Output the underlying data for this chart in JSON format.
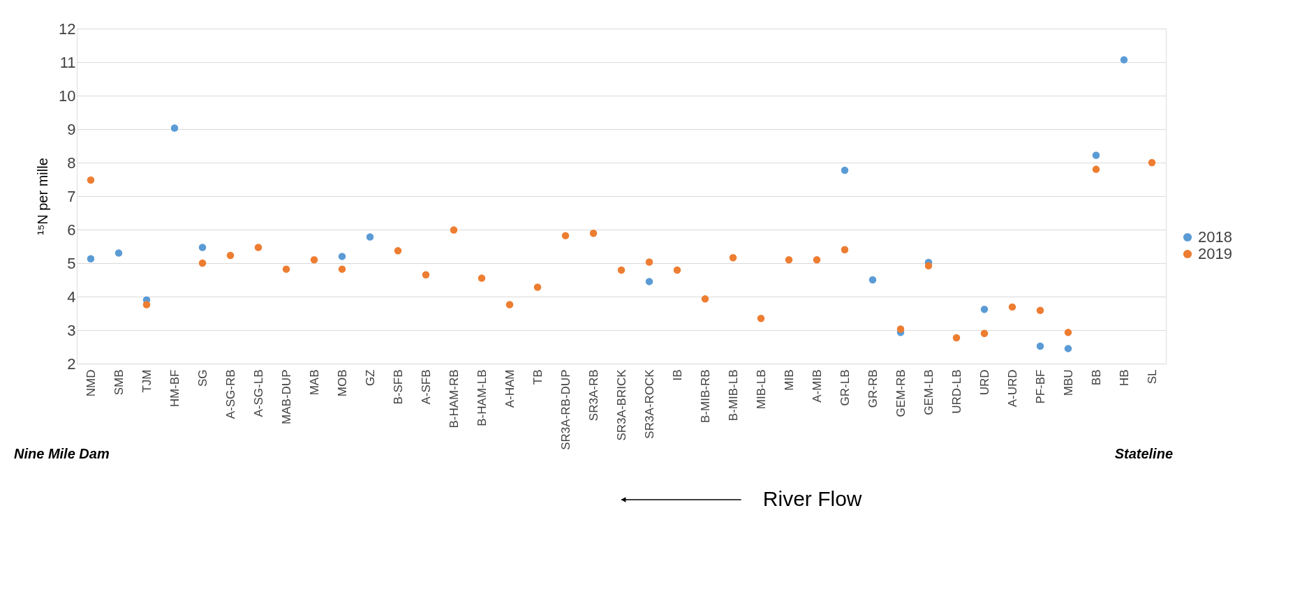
{
  "chart_data": {
    "type": "scatter",
    "ylabel": "¹⁵N per mille",
    "categories": [
      "NMD",
      "SMB",
      "TJM",
      "HM-BF",
      "SG",
      "A-SG-RB",
      "A-SG-LB",
      "MAB-DUP",
      "MAB",
      "MOB",
      "GZ",
      "B-SFB",
      "A-SFB",
      "B-HAM-RB",
      "B-HAM-LB",
      "A-HAM",
      "TB",
      "SR3A-RB-DUP",
      "SR3A-RB",
      "SR3A-BRICK",
      "SR3A-ROCK",
      "IB",
      "B-MIB-RB",
      "B-MIB-LB",
      "MIB-LB",
      "MIB",
      "A-MIB",
      "GR-LB",
      "GR-RB",
      "GEM-RB",
      "GEM-LB",
      "URD-LB",
      "URD",
      "A-URD",
      "PF-BF",
      "MBU",
      "BB",
      "HB",
      "SL"
    ],
    "series": [
      {
        "name": "2018",
        "color": "#5b9bd5",
        "values": [
          5.13,
          5.3,
          3.9,
          9.03,
          5.47,
          null,
          null,
          null,
          null,
          5.2,
          5.78,
          null,
          null,
          null,
          null,
          null,
          null,
          null,
          null,
          null,
          4.45,
          null,
          null,
          null,
          null,
          null,
          null,
          7.77,
          4.5,
          2.93,
          5.02,
          null,
          3.62,
          null,
          2.52,
          2.45,
          8.22,
          11.07,
          null
        ]
      },
      {
        "name": "2019",
        "color": "#ed7d31",
        "values": [
          7.48,
          null,
          3.76,
          null,
          5.0,
          5.23,
          5.47,
          4.82,
          5.1,
          4.82,
          null,
          5.37,
          4.65,
          5.99,
          4.55,
          3.76,
          4.28,
          5.82,
          5.89,
          4.79,
          5.03,
          4.79,
          3.93,
          5.16,
          3.35,
          5.1,
          5.1,
          5.4,
          null,
          3.03,
          4.92,
          2.77,
          2.9,
          3.69,
          3.59,
          2.93,
          7.8,
          null,
          8.0
        ]
      }
    ],
    "ylim": [
      2,
      12
    ],
    "yticks": [
      2,
      3,
      4,
      5,
      6,
      7,
      8,
      9,
      10,
      11,
      12
    ],
    "grid": "y",
    "legend": "right",
    "marker": "circle",
    "annotations": [
      "Nine Mile Dam",
      "Stateline",
      "River Flow"
    ]
  }
}
